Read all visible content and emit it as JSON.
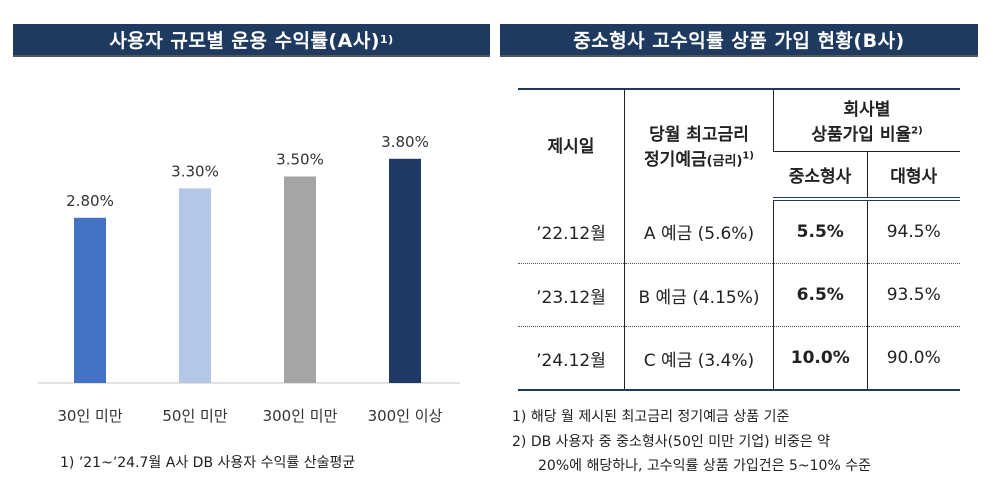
{
  "left_title": {
    "text": "사용자 규모별 운용 수익률(A사)",
    "sup": "1)"
  },
  "right_title": {
    "text": "중소형사 고수익률 상품 가입 현황(B사)"
  },
  "chart_data": {
    "type": "bar",
    "categories": [
      "30인 미만",
      "50인 미만",
      "300인 미만",
      "300인 이상"
    ],
    "values": [
      2.8,
      3.3,
      3.5,
      3.8
    ],
    "labels": [
      "2.80%",
      "3.30%",
      "3.50%",
      "3.80%"
    ],
    "colors": [
      "#4472c4",
      "#b4c7e7",
      "#a5a5a5",
      "#1f3864"
    ],
    "ylim": [
      0,
      4.2
    ],
    "grid": false,
    "title": "",
    "xlabel": "",
    "ylabel": ""
  },
  "left_footnote": "1)  ’21~’24.7월 A사 DB  사용자 수익률 산술평균",
  "table": {
    "headers": {
      "col1": "제시일",
      "col2_line1": "당월 최고금리",
      "col2_line2": "정기예금",
      "col2_small": "(금리)",
      "col2_sup": "1)",
      "group_line1": "회사별",
      "group_line2": "상품가입 비율",
      "group_sup": "2)",
      "sub1": "중소형사",
      "sub2": "대형사"
    },
    "rows": [
      {
        "date": "’22.12월",
        "product": "A 예금 (5.6%)",
        "small": "5.5%",
        "large": "94.5%"
      },
      {
        "date": "’23.12월",
        "product": "B 예금 (4.15%)",
        "small": "6.5%",
        "large": "93.5%"
      },
      {
        "date": "’24.12월",
        "product": "C 예금 (3.4%)",
        "small": "10.0%",
        "large": "90.0%"
      }
    ]
  },
  "right_footnotes": [
    "1)  해당 월 제시된 최고금리 정기예금 상품 기준",
    "2)  DB 사용자 중 중소형사(50인 미만 기업) 비중은 약",
    "20%에 해당하나, 고수익률 상품 가입건은 5~10% 수준"
  ]
}
